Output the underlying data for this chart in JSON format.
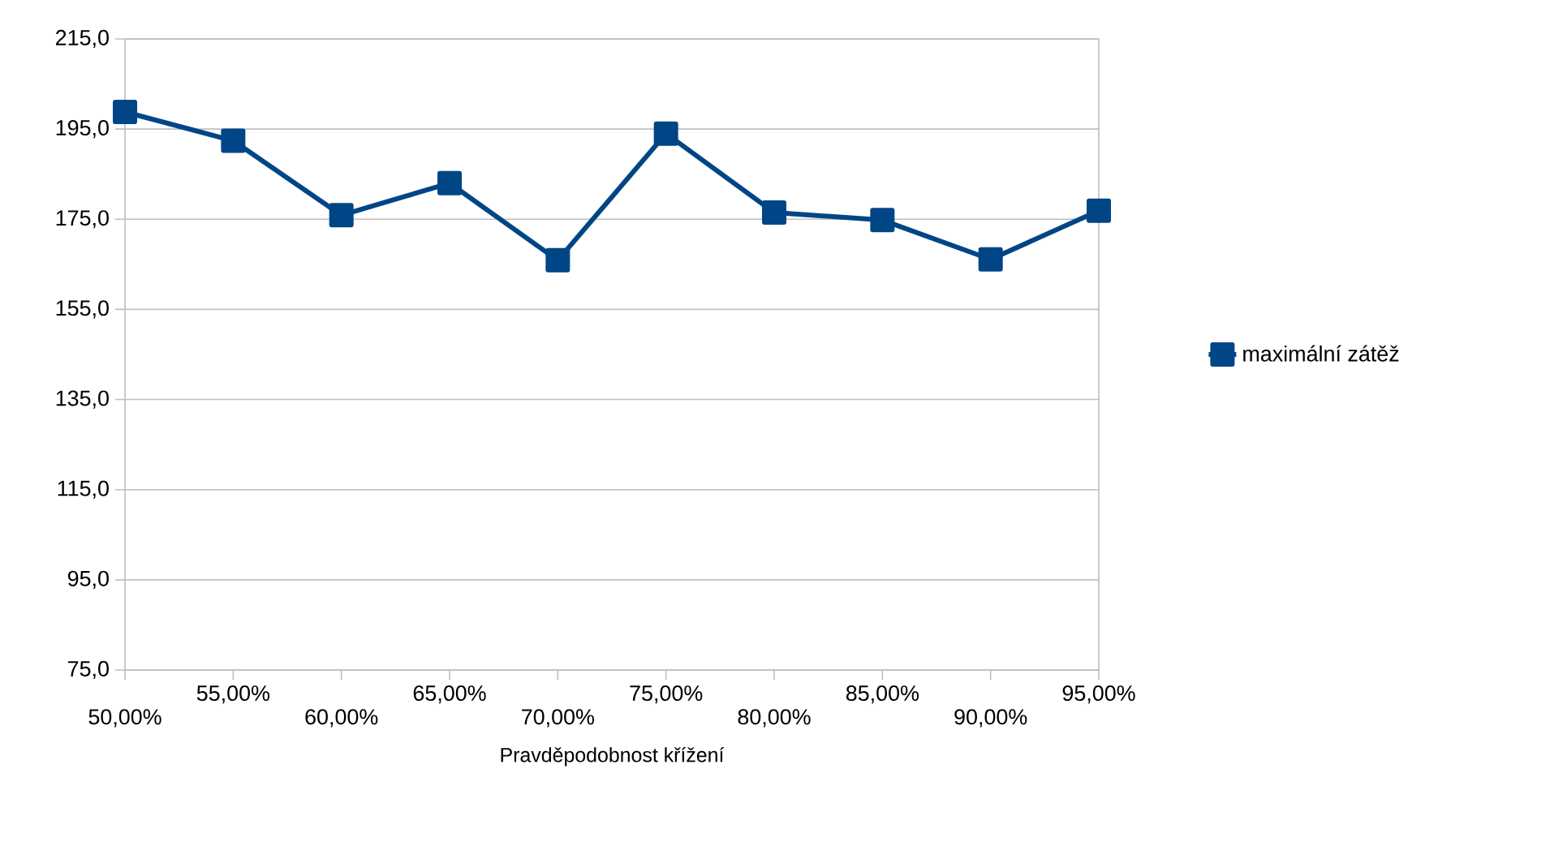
{
  "chart_data": {
    "type": "line",
    "xlabel": "Pravděpodobnost křížení",
    "categories": [
      "50,00%",
      "55,00%",
      "60,00%",
      "65,00%",
      "70,00%",
      "75,00%",
      "80,00%",
      "85,00%",
      "90,00%",
      "95,00%"
    ],
    "series": [
      {
        "name": "maximální zátěž",
        "color": "#004586",
        "values": [
          198.8,
          192.4,
          175.9,
          183.0,
          165.9,
          194.0,
          176.5,
          174.8,
          166.1,
          176.9
        ]
      }
    ],
    "ylim": [
      75,
      215
    ],
    "yticks": [
      {
        "value": 75,
        "label": "75,0"
      },
      {
        "value": 95,
        "label": "95,0"
      },
      {
        "value": 115,
        "label": "115,0"
      },
      {
        "value": 135,
        "label": "135,0"
      },
      {
        "value": 155,
        "label": "155,0"
      },
      {
        "value": 175,
        "label": "175,0"
      },
      {
        "value": 195,
        "label": "195,0"
      },
      {
        "value": 215,
        "label": "215,0"
      }
    ],
    "grid": "y",
    "legend": "right",
    "marker": "square",
    "line_style": "solid"
  }
}
